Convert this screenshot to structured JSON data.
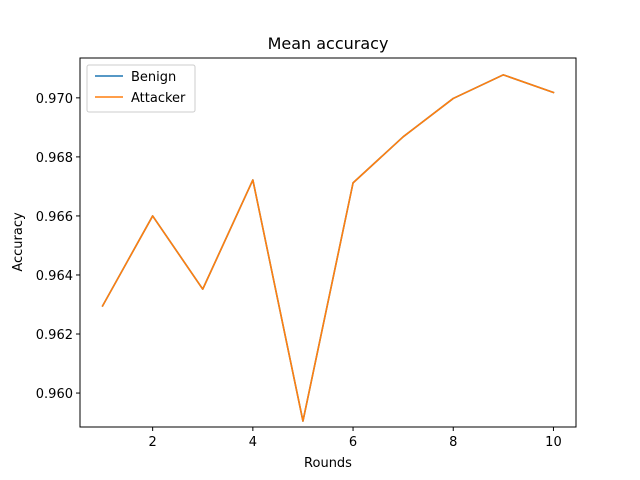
{
  "chart_data": {
    "type": "line",
    "title": "Mean accuracy",
    "xlabel": "Rounds",
    "ylabel": "Accuracy",
    "x": [
      1,
      2,
      3,
      4,
      5,
      6,
      7,
      8,
      9,
      10
    ],
    "xlim": [
      0.55,
      10.45
    ],
    "ylim": [
      0.95885,
      0.97135
    ],
    "xticks": [
      2,
      4,
      6,
      8,
      10
    ],
    "yticks": [
      0.96,
      0.962,
      0.964,
      0.966,
      0.968,
      0.97
    ],
    "xtick_labels": [
      "2",
      "4",
      "6",
      "8",
      "10"
    ],
    "ytick_labels": [
      "0.960",
      "0.962",
      "0.964",
      "0.966",
      "0.968",
      "0.970"
    ],
    "grid": false,
    "legend": "top-left",
    "series": [
      {
        "name": "Benign",
        "color": "#1f77b4",
        "values": [
          0.96295,
          0.966,
          0.96352,
          0.96722,
          0.95905,
          0.96712,
          0.96868,
          0.96998,
          0.97078,
          0.97018
        ]
      },
      {
        "name": "Attacker",
        "color": "#ff7f0e",
        "values": [
          0.96295,
          0.966,
          0.96352,
          0.96722,
          0.95905,
          0.96712,
          0.96868,
          0.96998,
          0.97078,
          0.97018
        ]
      }
    ]
  }
}
